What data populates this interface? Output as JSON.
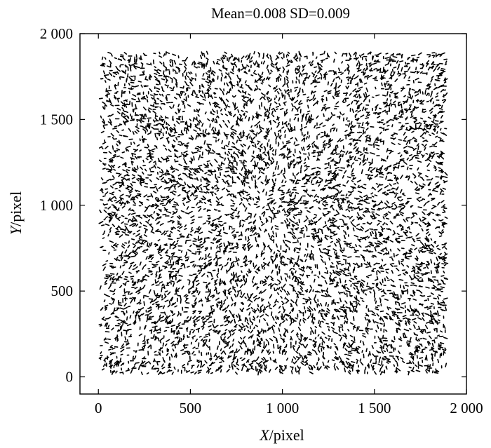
{
  "chart_data": {
    "type": "scatter",
    "title": "Mean=0.008  SD=0.009",
    "xlabel_var": "X",
    "xlabel_unit": "/pixel",
    "ylabel_var": "Y",
    "ylabel_unit": "/pixel",
    "xlim": [
      -100,
      2000
    ],
    "ylim": [
      -100,
      2000
    ],
    "x_ticks": [
      0,
      500,
      1000,
      1500,
      2000
    ],
    "x_tick_labels": [
      "0",
      "500",
      "1 000",
      "1 500",
      "2 000"
    ],
    "y_ticks": [
      0,
      500,
      1000,
      1500,
      2000
    ],
    "y_tick_labels": [
      "0",
      "500",
      "1 000",
      "1 500",
      "2 000"
    ],
    "field_extent": {
      "x": [
        10,
        1890
      ],
      "y": [
        20,
        1890
      ]
    },
    "vector_count": 6500,
    "marker_color": "#000000",
    "grid": false,
    "legend": "none"
  }
}
